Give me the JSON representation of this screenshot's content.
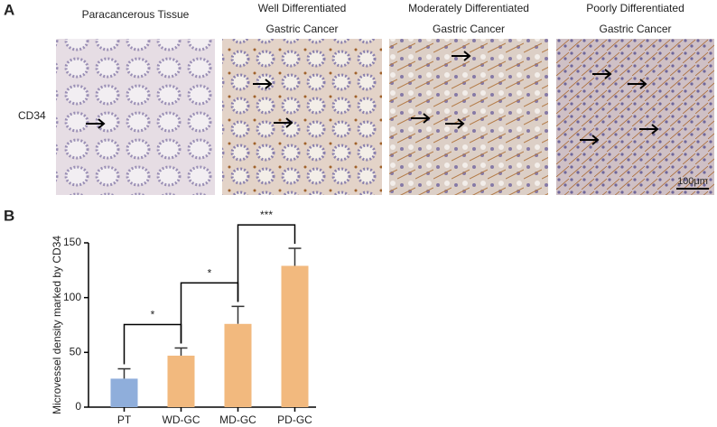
{
  "panel_a": {
    "label": "A",
    "row_label": "CD34",
    "columns": [
      [
        "Paracancerous Tissue"
      ],
      [
        "Well Differentiated",
        "Gastric Cancer"
      ],
      [
        "Moderately Differentiated",
        "Gastric Cancer"
      ],
      [
        "Poorly Differentiated",
        "Gastric Cancer"
      ]
    ],
    "scale_bar": "100μm"
  },
  "chart_data": {
    "type": "bar",
    "panel_label": "B",
    "y_label": "Microvessel density marked by CD34",
    "categories": [
      "PT",
      "WD-GC",
      "MD-GC",
      "PD-GC"
    ],
    "values": [
      26,
      47,
      76,
      129
    ],
    "errors": [
      9,
      7,
      16,
      16
    ],
    "colors": [
      "#8faedb",
      "#f2b97e",
      "#f2b97e",
      "#f2b97e"
    ],
    "ylim": [
      0,
      150
    ],
    "yticks": [
      0,
      50,
      100,
      150
    ],
    "annotations": [
      "*",
      "*",
      "***"
    ]
  }
}
